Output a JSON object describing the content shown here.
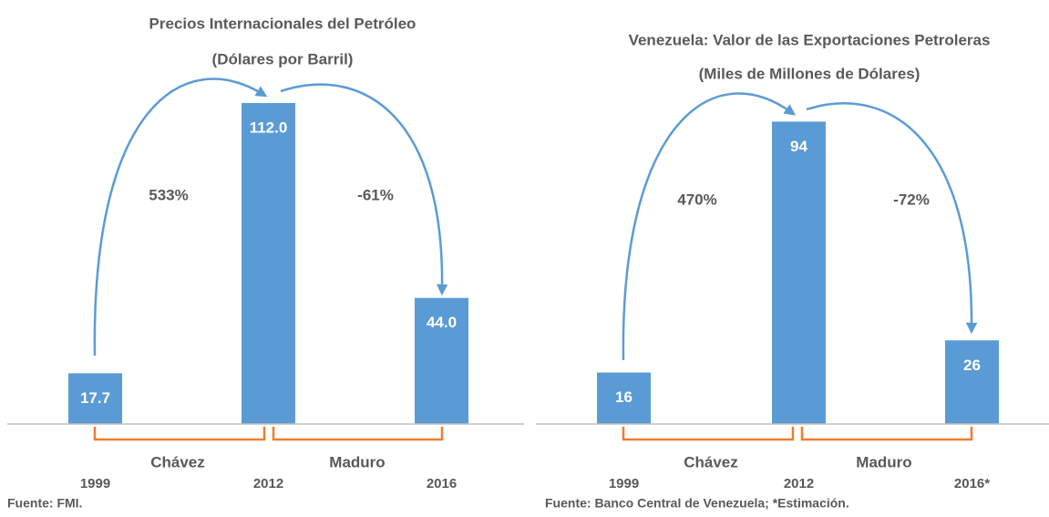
{
  "chart_data": [
    {
      "type": "bar",
      "title": "Precios Internacionales del Petróleo",
      "subtitle": "(Dólares por Barril)",
      "categories": [
        "1999",
        "2012",
        "2016"
      ],
      "values": [
        17.7,
        112.0,
        44.0
      ],
      "value_labels": [
        "17.7",
        "112.0",
        "44.0"
      ],
      "color": "#5b9bd5",
      "ylim": [
        0,
        140
      ],
      "annotations": [
        "533%",
        "-61%"
      ],
      "periods": [
        "Chávez",
        "Maduro"
      ],
      "source": "Fuente: FMI."
    },
    {
      "type": "bar",
      "title": "Venezuela: Valor de las Exportaciones Petroleras",
      "subtitle": "(Miles de Millones de Dólares)",
      "categories": [
        "1999",
        "2012",
        "2016*"
      ],
      "values": [
        16,
        94,
        26
      ],
      "color": "#5b9bd5",
      "ylim": [
        0,
        125
      ],
      "annotations": [
        "470%",
        "-72%"
      ],
      "periods": [
        "Chávez",
        "Maduro"
      ],
      "source": "Fuente: Banco Central de Venezuela; *Estimación."
    }
  ]
}
